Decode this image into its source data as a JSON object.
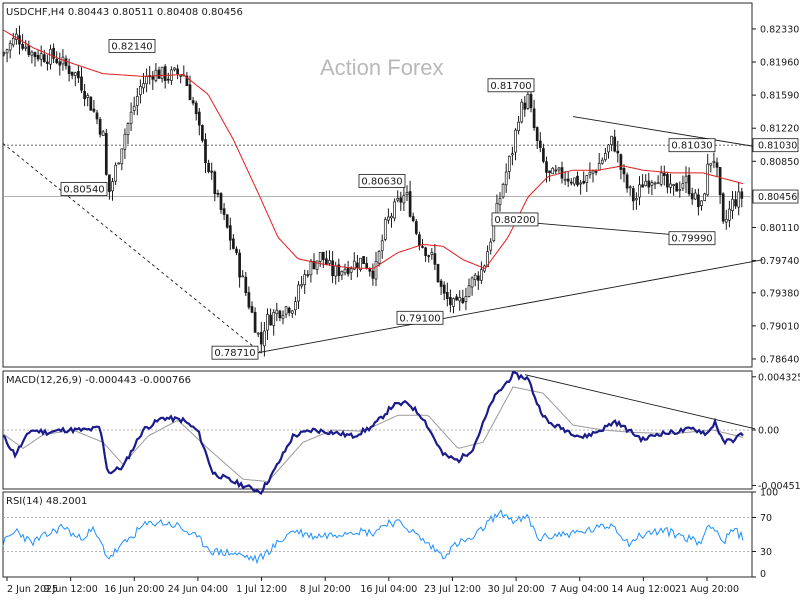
{
  "chart_data": {
    "type": "candlestick",
    "instrument": "USDCHF",
    "timeframe": "H4",
    "header": "USDCHF,H4  0.80443 0.80511 0.80408 0.80456",
    "watermark": "Action Forex",
    "ohlc_last": {
      "open": 0.80443,
      "high": 0.80511,
      "low": 0.80408,
      "close": 0.80456
    },
    "price_axis": {
      "ylim": [
        0.7855,
        0.8262
      ],
      "ticks": [
        "0.82330",
        "0.81960",
        "0.81590",
        "0.81220",
        "0.80850",
        "0.80480",
        "0.80110",
        "0.79740",
        "0.79380",
        "0.79010",
        "0.78640"
      ],
      "current_price": "0.80456",
      "marked_level": "0.81030"
    },
    "x_axis_labels": [
      "2 Jun 2025",
      "9 Jun 12:00",
      "16 Jun 20:00",
      "24 Jun 04:00",
      "1 Jul 12:00",
      "8 Jul 20:00",
      "16 Jul 04:00",
      "23 Jul 12:00",
      "30 Jul 20:00",
      "7 Aug 04:00",
      "14 Aug 12:00",
      "21 Aug 20:00"
    ],
    "price_key_points": [
      [
        0,
        0.8205
      ],
      [
        14,
        0.8225
      ],
      [
        30,
        0.8205
      ],
      [
        52,
        0.8201
      ],
      [
        75,
        0.818
      ],
      [
        95,
        0.813
      ],
      [
        101,
        0.811
      ],
      [
        103,
        0.807
      ],
      [
        106,
        0.805
      ],
      [
        110,
        0.8065
      ],
      [
        120,
        0.811
      ],
      [
        138,
        0.817
      ],
      [
        150,
        0.8185
      ],
      [
        165,
        0.818
      ],
      [
        180,
        0.8185
      ],
      [
        190,
        0.815
      ],
      [
        200,
        0.81
      ],
      [
        215,
        0.804
      ],
      [
        230,
        0.799
      ],
      [
        245,
        0.793
      ],
      [
        258,
        0.788
      ],
      [
        262,
        0.7905
      ],
      [
        275,
        0.7918
      ],
      [
        290,
        0.7925
      ],
      [
        305,
        0.7965
      ],
      [
        318,
        0.798
      ],
      [
        330,
        0.796
      ],
      [
        345,
        0.7968
      ],
      [
        360,
        0.7975
      ],
      [
        372,
        0.796
      ],
      [
        383,
        0.8015
      ],
      [
        396,
        0.804
      ],
      [
        403,
        0.8048
      ],
      [
        415,
        0.8
      ],
      [
        430,
        0.7975
      ],
      [
        440,
        0.7935
      ],
      [
        453,
        0.792
      ],
      [
        465,
        0.7945
      ],
      [
        480,
        0.7965
      ],
      [
        490,
        0.801
      ],
      [
        500,
        0.806
      ],
      [
        510,
        0.81
      ],
      [
        516,
        0.814
      ],
      [
        525,
        0.8155
      ],
      [
        535,
        0.81
      ],
      [
        545,
        0.8068
      ],
      [
        560,
        0.807
      ],
      [
        580,
        0.806
      ],
      [
        598,
        0.8085
      ],
      [
        610,
        0.811
      ],
      [
        622,
        0.806
      ],
      [
        632,
        0.804
      ],
      [
        640,
        0.8062
      ],
      [
        655,
        0.807
      ],
      [
        668,
        0.805
      ],
      [
        682,
        0.8065
      ],
      [
        698,
        0.803
      ],
      [
        706,
        0.8085
      ],
      [
        712,
        0.809
      ],
      [
        720,
        0.801
      ],
      [
        730,
        0.804
      ],
      [
        740,
        0.8046
      ]
    ],
    "ma_key_points": [
      [
        0,
        0.8232
      ],
      [
        30,
        0.8212
      ],
      [
        60,
        0.8198
      ],
      [
        100,
        0.8183
      ],
      [
        140,
        0.818
      ],
      [
        180,
        0.8182
      ],
      [
        205,
        0.816
      ],
      [
        230,
        0.811
      ],
      [
        255,
        0.805
      ],
      [
        275,
        0.8
      ],
      [
        295,
        0.7976
      ],
      [
        320,
        0.797
      ],
      [
        345,
        0.7966
      ],
      [
        370,
        0.7965
      ],
      [
        395,
        0.7983
      ],
      [
        420,
        0.7992
      ],
      [
        440,
        0.799
      ],
      [
        460,
        0.7975
      ],
      [
        482,
        0.7965
      ],
      [
        505,
        0.8
      ],
      [
        525,
        0.8045
      ],
      [
        545,
        0.8068
      ],
      [
        570,
        0.8075
      ],
      [
        595,
        0.8075
      ],
      [
        620,
        0.808
      ],
      [
        640,
        0.8075
      ],
      [
        670,
        0.8072
      ],
      [
        700,
        0.8072
      ],
      [
        720,
        0.8066
      ],
      [
        740,
        0.806
      ]
    ],
    "labels": [
      {
        "text": "0.82140",
        "x_bar": 152,
        "price": 0.8214,
        "anchor": "end"
      },
      {
        "text": "0.80540",
        "x_bar": 104,
        "price": 0.8054,
        "anchor": "end"
      },
      {
        "text": "0.80630",
        "x_bar": 402,
        "price": 0.8063,
        "anchor": "end"
      },
      {
        "text": "0.78710",
        "x_bar": 255,
        "price": 0.7871,
        "anchor": "end"
      },
      {
        "text": "0.81700",
        "x_bar": 531,
        "price": 0.817,
        "anchor": "end"
      },
      {
        "text": "0.80200",
        "x_bar": 489,
        "price": 0.802,
        "anchor": "start"
      },
      {
        "text": "0.79100",
        "x_bar": 440,
        "price": 0.791,
        "anchor": "end"
      },
      {
        "text": "0.81030",
        "x_bar": 712,
        "price": 0.8103,
        "anchor": "end"
      },
      {
        "text": "0.79990",
        "x_bar": 712,
        "price": 0.7999,
        "anchor": "end"
      }
    ],
    "trendlines": [
      {
        "style": "dashed",
        "points": [
          [
            0,
            0.8105
          ],
          [
            258,
            0.7871
          ]
        ]
      },
      {
        "style": "solid",
        "points": [
          [
            255,
            0.7871
          ],
          [
            760,
            0.7975
          ]
        ]
      },
      {
        "style": "solid",
        "points": [
          [
            570,
            0.8135
          ],
          [
            760,
            0.81
          ]
        ]
      },
      {
        "style": "solid",
        "points": [
          [
            489,
            0.802
          ],
          [
            712,
            0.7999
          ]
        ]
      }
    ],
    "macd": {
      "header": "MACD(12,26,9) -0.000443 -0.000766",
      "ylim": [
        -0.0048,
        0.0048
      ],
      "ticks": [
        "0.004325",
        "0.00",
        "-0.004511"
      ],
      "main_key_points": [
        [
          0,
          -0.0005
        ],
        [
          12,
          -0.002
        ],
        [
          28,
          0.0
        ],
        [
          45,
          -0.0002
        ],
        [
          60,
          0.0
        ],
        [
          85,
          0.0
        ],
        [
          97,
          0.0002
        ],
        [
          105,
          -0.0035
        ],
        [
          120,
          -0.003
        ],
        [
          140,
          0.0
        ],
        [
          160,
          0.001
        ],
        [
          180,
          0.0008
        ],
        [
          195,
          -0.0001
        ],
        [
          210,
          -0.0035
        ],
        [
          230,
          -0.0042
        ],
        [
          250,
          -0.0048
        ],
        [
          258,
          -0.005
        ],
        [
          270,
          -0.0035
        ],
        [
          290,
          -0.0005
        ],
        [
          310,
          0.0
        ],
        [
          330,
          -0.0002
        ],
        [
          350,
          -0.0005
        ],
        [
          370,
          0.0003
        ],
        [
          390,
          0.002
        ],
        [
          405,
          0.0022
        ],
        [
          420,
          0.001
        ],
        [
          440,
          -0.002
        ],
        [
          455,
          -0.0025
        ],
        [
          470,
          -0.0015
        ],
        [
          490,
          0.0025
        ],
        [
          510,
          0.0045
        ],
        [
          525,
          0.0042
        ],
        [
          535,
          0.002
        ],
        [
          545,
          0.0006
        ],
        [
          560,
          0.0001
        ],
        [
          580,
          -0.0006
        ],
        [
          598,
          0.0
        ],
        [
          612,
          0.0007
        ],
        [
          625,
          0.0
        ],
        [
          640,
          -0.0008
        ],
        [
          655,
          -0.0003
        ],
        [
          670,
          -0.0002
        ],
        [
          690,
          0.0001
        ],
        [
          705,
          -0.0003
        ],
        [
          712,
          0.0007
        ],
        [
          720,
          -0.001
        ],
        [
          730,
          -0.0008
        ],
        [
          740,
          -0.0003
        ]
      ],
      "signal_key_points": [
        [
          0,
          -0.0003
        ],
        [
          20,
          -0.0015
        ],
        [
          40,
          -0.0004
        ],
        [
          70,
          0.0
        ],
        [
          100,
          -0.001
        ],
        [
          120,
          -0.0028
        ],
        [
          145,
          -0.0005
        ],
        [
          175,
          0.0008
        ],
        [
          205,
          -0.0015
        ],
        [
          240,
          -0.004
        ],
        [
          265,
          -0.0042
        ],
        [
          300,
          -0.001
        ],
        [
          330,
          0.0
        ],
        [
          360,
          -0.0001
        ],
        [
          395,
          0.0012
        ],
        [
          425,
          0.0012
        ],
        [
          455,
          -0.0015
        ],
        [
          480,
          -0.001
        ],
        [
          510,
          0.0035
        ],
        [
          540,
          0.003
        ],
        [
          570,
          0.0004
        ],
        [
          600,
          0.0
        ],
        [
          630,
          -0.0002
        ],
        [
          670,
          -0.0003
        ],
        [
          710,
          0.0
        ],
        [
          740,
          -0.0006
        ]
      ],
      "trendline": [
        [
          522,
          0.0045
        ],
        [
          752,
          0.0001
        ]
      ]
    },
    "rsi": {
      "header": "RSI(14) 48.2001",
      "ylim": [
        0,
        100
      ],
      "ticks": [
        "100",
        "70",
        "30",
        "0"
      ],
      "levels": [
        70,
        30
      ],
      "key_points": [
        [
          0,
          40
        ],
        [
          14,
          55
        ],
        [
          28,
          40
        ],
        [
          45,
          50
        ],
        [
          60,
          60
        ],
        [
          75,
          45
        ],
        [
          90,
          55
        ],
        [
          100,
          35
        ],
        [
          105,
          22
        ],
        [
          120,
          38
        ],
        [
          140,
          60
        ],
        [
          155,
          65
        ],
        [
          175,
          60
        ],
        [
          195,
          45
        ],
        [
          210,
          30
        ],
        [
          230,
          28
        ],
        [
          255,
          20
        ],
        [
          270,
          35
        ],
        [
          290,
          55
        ],
        [
          310,
          48
        ],
        [
          330,
          50
        ],
        [
          350,
          55
        ],
        [
          370,
          52
        ],
        [
          385,
          65
        ],
        [
          400,
          62
        ],
        [
          418,
          45
        ],
        [
          440,
          25
        ],
        [
          455,
          40
        ],
        [
          470,
          45
        ],
        [
          490,
          70
        ],
        [
          500,
          75
        ],
        [
          512,
          65
        ],
        [
          525,
          70
        ],
        [
          535,
          45
        ],
        [
          555,
          50
        ],
        [
          575,
          52
        ],
        [
          598,
          58
        ],
        [
          610,
          62
        ],
        [
          625,
          40
        ],
        [
          640,
          50
        ],
        [
          660,
          55
        ],
        [
          680,
          48
        ],
        [
          698,
          40
        ],
        [
          706,
          65
        ],
        [
          715,
          52
        ],
        [
          720,
          40
        ],
        [
          730,
          55
        ],
        [
          740,
          48
        ]
      ]
    }
  }
}
